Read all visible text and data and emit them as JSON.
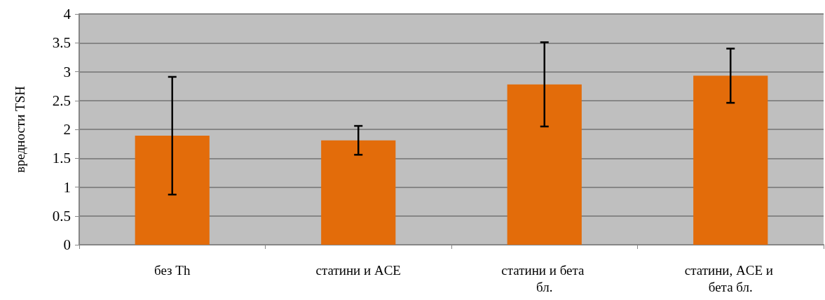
{
  "chart_data": {
    "type": "bar",
    "ylabel": "вредности TSH",
    "categories": [
      "без Th",
      "статини и ACE",
      "статини и бета бл.",
      "статини, ACE и бета бл."
    ],
    "values": [
      1.89,
      1.81,
      2.78,
      2.93
    ],
    "errors": [
      1.02,
      0.25,
      0.73,
      0.47
    ],
    "color": "#e36c0a",
    "ylim": [
      0,
      4
    ],
    "yticks": [
      0,
      0.5,
      1,
      1.5,
      2,
      2.5,
      3,
      3.5,
      4
    ],
    "grid": "y"
  }
}
